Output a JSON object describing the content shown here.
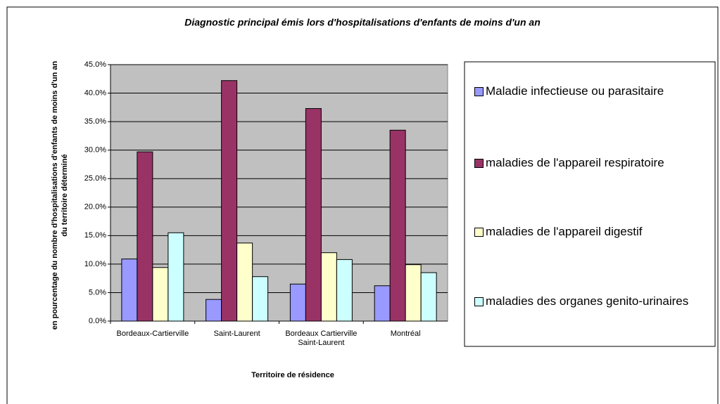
{
  "chart_data": {
    "type": "bar",
    "title": "Diagnostic principal émis lors d'hospitalisations d'enfants de moins d'un an",
    "x_label": "Territoire de résidence",
    "y_label": "en pourcentage du nombre d'hospitalisations d'enfants de moins d'un an du territoire déterminé",
    "categories": [
      "Bordeaux-Cartierville",
      "Saint-Laurent",
      "Bordeaux Cartierville Saint-Laurent",
      "Montréal"
    ],
    "series": [
      {
        "name": "Maladie infectieuse ou parasitaire",
        "color": "#9999ff",
        "values": [
          10.9,
          3.8,
          6.5,
          6.2
        ]
      },
      {
        "name": "maladies de l'appareil respiratoire",
        "color": "#993366",
        "values": [
          29.7,
          42.2,
          37.3,
          33.5
        ]
      },
      {
        "name": "maladies de l'appareil digestif",
        "color": "#ffffcc",
        "values": [
          9.4,
          13.7,
          12.0,
          9.9
        ]
      },
      {
        "name": "maladies des organes genito-urinaires",
        "color": "#ccffff",
        "values": [
          15.5,
          7.8,
          10.8,
          8.5
        ]
      }
    ],
    "ylim": [
      0,
      45
    ],
    "yticks": [
      {
        "value": 0,
        "label": "0.0%"
      },
      {
        "value": 5,
        "label": "5.0%"
      },
      {
        "value": 10,
        "label": "10.0%"
      },
      {
        "value": 15,
        "label": "15.0%"
      },
      {
        "value": 20,
        "label": "20.0%"
      },
      {
        "value": 25,
        "label": "25.0%"
      },
      {
        "value": 30,
        "label": "30.0%"
      },
      {
        "value": 35,
        "label": "35.0%"
      },
      {
        "value": 40,
        "label": "40.0%"
      },
      {
        "value": 45,
        "label": "45.0%"
      }
    ],
    "grid": true,
    "plot_background": "#c0c0c0",
    "legend": "right"
  }
}
